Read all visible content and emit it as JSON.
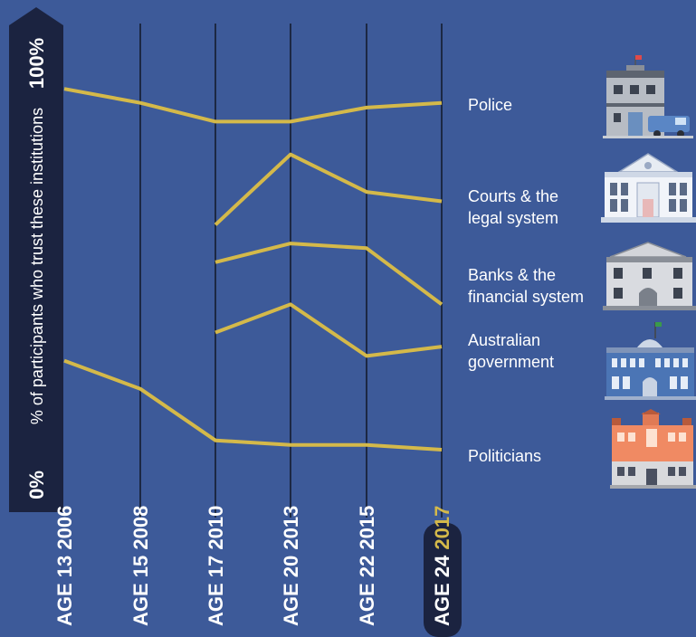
{
  "chart_data": {
    "type": "line",
    "ylabel": "% of participants who trust these institutions",
    "y_top_label": "100%",
    "y_bottom_label": "0%",
    "ylim": [
      0,
      100
    ],
    "categories": [
      {
        "age": "AGE 13",
        "year": "2006"
      },
      {
        "age": "AGE 15",
        "year": "2008"
      },
      {
        "age": "AGE 17",
        "year": "2010"
      },
      {
        "age": "AGE 20",
        "year": "2013"
      },
      {
        "age": "AGE 22",
        "year": "2015"
      },
      {
        "age": "AGE 24",
        "year": "2017"
      }
    ],
    "highlight_category": 5,
    "line_color": "#d4b94a",
    "series": [
      {
        "name": "Police",
        "label_lines": [
          "Police"
        ],
        "icon": "police-station-icon",
        "values": [
          88,
          85,
          81,
          81,
          84,
          85
        ]
      },
      {
        "name": "Courts & the legal system",
        "label_lines": [
          "Courts & the",
          "legal system"
        ],
        "icon": "courthouse-icon",
        "values": [
          null,
          null,
          59,
          74,
          66,
          64
        ]
      },
      {
        "name": "Banks & the financial system",
        "label_lines": [
          "Banks & the",
          "financial system"
        ],
        "icon": "bank-icon",
        "values": [
          null,
          null,
          51,
          55,
          54,
          42
        ]
      },
      {
        "name": "Australian government",
        "label_lines": [
          "Australian",
          "government"
        ],
        "icon": "parliament-icon",
        "values": [
          null,
          null,
          36,
          42,
          31,
          33
        ]
      },
      {
        "name": "Politicians",
        "label_lines": [
          "Politicians"
        ],
        "icon": "town-hall-icon",
        "values": [
          30,
          24,
          13,
          12,
          12,
          11
        ]
      }
    ]
  }
}
